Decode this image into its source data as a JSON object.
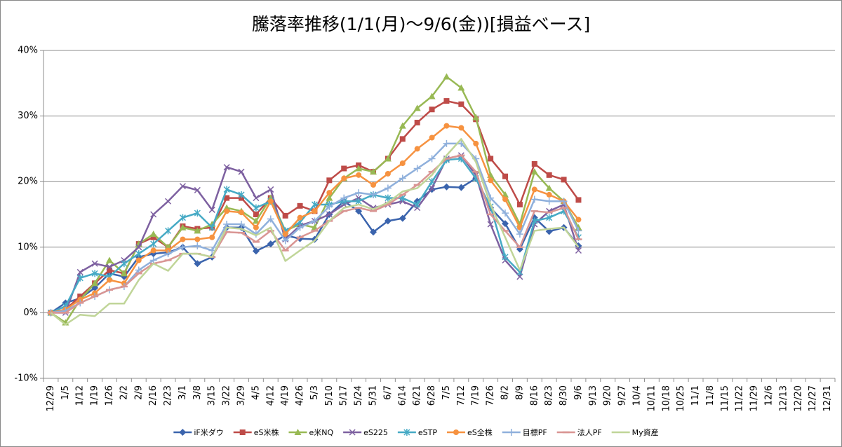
{
  "chart_data": {
    "type": "line",
    "title": "騰落率推移(1/1(月)〜9/6(金))[損益ベース]",
    "categories": [
      "12/29",
      "1/5",
      "1/12",
      "1/19",
      "1/26",
      "2/2",
      "2/9",
      "2/16",
      "2/23",
      "3/1",
      "3/8",
      "3/15",
      "3/22",
      "3/29",
      "4/5",
      "4/12",
      "4/19",
      "4/26",
      "5/3",
      "5/10",
      "5/17",
      "5/24",
      "5/31",
      "6/7",
      "6/14",
      "6/21",
      "6/28",
      "7/5",
      "7/12",
      "7/19",
      "7/26",
      "8/2",
      "8/9",
      "8/16",
      "8/23",
      "8/30",
      "9/6",
      "9/13",
      "9/20",
      "9/27",
      "10/4",
      "10/11",
      "10/18",
      "10/25",
      "11/1",
      "11/8",
      "11/15",
      "11/22",
      "11/29",
      "12/6",
      "12/13",
      "12/20",
      "12/27",
      "12/31"
    ],
    "ylim": [
      -10,
      40
    ],
    "yticks": [
      {
        "value": -10,
        "label": "-10%"
      },
      {
        "value": 0,
        "label": "0%"
      },
      {
        "value": 10,
        "label": "10%"
      },
      {
        "value": 20,
        "label": "20%"
      },
      {
        "value": 30,
        "label": "30%"
      },
      {
        "value": 40,
        "label": "40%"
      }
    ],
    "grid": true,
    "legend": "bottom",
    "series": [
      {
        "name": "iF米ダウ",
        "color": "#3b64ad",
        "marker": "diamond",
        "values": [
          0,
          1.5,
          2.2,
          3.8,
          6,
          5.5,
          8.5,
          9,
          9.2,
          10,
          7.5,
          8.5,
          13,
          13,
          9.4,
          10.5,
          11.8,
          11.3,
          11.2,
          15,
          17,
          15.5,
          12.3,
          14,
          14.4,
          17,
          18.8,
          19.2,
          19.1,
          20.5,
          16,
          13.6,
          9.7,
          14.5,
          12.4,
          13,
          10.2,
          null,
          null,
          null,
          null,
          null,
          null,
          null,
          null,
          null,
          null,
          null,
          null,
          null,
          null,
          null,
          null,
          null
        ]
      },
      {
        "name": "eS米株",
        "color": "#be4b48",
        "marker": "square",
        "values": [
          0,
          0.5,
          2.5,
          4.5,
          6.5,
          6,
          10.5,
          11.5,
          10,
          13.2,
          12.8,
          13,
          17.5,
          17.5,
          15,
          17.5,
          14.8,
          16.3,
          15.5,
          20.2,
          22,
          22.5,
          21.5,
          23.5,
          26.5,
          29,
          31,
          32.3,
          31.8,
          29.5,
          23.5,
          20.8,
          16.5,
          22.7,
          21,
          20.3,
          17.2,
          null,
          null,
          null,
          null,
          null,
          null,
          null,
          null,
          null,
          null,
          null,
          null,
          null,
          null,
          null,
          null,
          null
        ]
      },
      {
        "name": "e米NQ",
        "color": "#98b954",
        "marker": "triangle",
        "values": [
          0,
          -1.5,
          2,
          4.5,
          8,
          6,
          10.5,
          12,
          10,
          13,
          12.5,
          13.5,
          16,
          15.5,
          14,
          17.5,
          12.5,
          13.5,
          13,
          17.5,
          20.5,
          22,
          21.5,
          23.5,
          28.5,
          31.2,
          33,
          36,
          34.3,
          29.8,
          21,
          18,
          13.5,
          21.5,
          19,
          17,
          13,
          null,
          null,
          null,
          null,
          null,
          null,
          null,
          null,
          null,
          null,
          null,
          null,
          null,
          null,
          null,
          null,
          null
        ]
      },
      {
        "name": "eS225",
        "color": "#7d60a0",
        "marker": "x",
        "values": [
          0,
          0,
          6.2,
          7.5,
          7,
          8,
          10,
          15,
          17,
          19.3,
          18.7,
          15.7,
          22.2,
          21.5,
          17.5,
          18.8,
          11.2,
          13.3,
          14,
          15,
          16.5,
          17.5,
          16,
          16.5,
          17,
          16,
          19,
          23.5,
          24,
          21,
          13.5,
          8,
          5.5,
          13.5,
          15.5,
          16.5,
          9.5,
          null,
          null,
          null,
          null,
          null,
          null,
          null,
          null,
          null,
          null,
          null,
          null,
          null,
          null,
          null,
          null,
          null
        ]
      },
      {
        "name": "eSTP",
        "color": "#46aac5",
        "marker": "star",
        "values": [
          0,
          1,
          5.3,
          6,
          5.5,
          7.5,
          9,
          10.5,
          12.5,
          14.5,
          15.2,
          13,
          18.8,
          18,
          16,
          17,
          12.5,
          13.8,
          16.5,
          16.5,
          17,
          17,
          18,
          17.5,
          17.5,
          16.5,
          20,
          23.3,
          23.5,
          20.5,
          16.2,
          8.5,
          6.2,
          14,
          14.5,
          15.5,
          11.5,
          null,
          null,
          null,
          null,
          null,
          null,
          null,
          null,
          null,
          null,
          null,
          null,
          null,
          null,
          null,
          null,
          null
        ]
      },
      {
        "name": "eS全株",
        "color": "#f69240",
        "marker": "circle",
        "values": [
          0,
          0.5,
          2,
          3,
          5,
          4.5,
          8,
          9.5,
          9.5,
          11.2,
          11.2,
          11.5,
          15.5,
          15.3,
          13,
          17,
          12,
          14.5,
          15.5,
          18.3,
          20.5,
          21,
          19.5,
          21.2,
          22.8,
          25,
          26.7,
          28.5,
          28.2,
          25.8,
          20.2,
          17.3,
          13,
          18.8,
          18,
          17,
          14.2,
          null,
          null,
          null,
          null,
          null,
          null,
          null,
          null,
          null,
          null,
          null,
          null,
          null,
          null,
          null,
          null,
          null
        ]
      },
      {
        "name": "目標PF",
        "color": "#8fb0dc",
        "marker": "plus",
        "values": [
          0,
          0.3,
          1.5,
          2.5,
          3.5,
          4,
          6.5,
          8,
          9,
          10,
          10.2,
          9.5,
          13.5,
          13.5,
          12,
          14.3,
          11,
          13,
          14,
          16.2,
          17.5,
          18.3,
          18,
          19,
          20.5,
          22,
          23.5,
          25.8,
          25.8,
          23.5,
          17.5,
          15.2,
          12,
          17.3,
          17,
          17,
          12.5,
          null,
          null,
          null,
          null,
          null,
          null,
          null,
          null,
          null,
          null,
          null,
          null,
          null,
          null,
          null,
          null,
          null
        ]
      },
      {
        "name": "法人PF",
        "color": "#d99593",
        "marker": "dash",
        "values": [
          0,
          0,
          1.5,
          2.5,
          3.5,
          4,
          6,
          7.5,
          8,
          9,
          9,
          8.5,
          12.3,
          12.2,
          10.8,
          12.5,
          9.5,
          11.5,
          12.5,
          14,
          15.5,
          16,
          15.5,
          16.5,
          18,
          19.5,
          21.5,
          23.5,
          24,
          21.5,
          15,
          12.5,
          10,
          15.5,
          15.3,
          16,
          11.2,
          null,
          null,
          null,
          null,
          null,
          null,
          null,
          null,
          null,
          null,
          null,
          null,
          null,
          null,
          null,
          null,
          null
        ]
      },
      {
        "name": "My資産",
        "color": "#c0d598",
        "marker": "none",
        "values": [
          0,
          -1.8,
          -0.3,
          -0.5,
          1.4,
          1.4,
          5,
          7.5,
          6.4,
          9,
          9,
          8.5,
          13,
          12.8,
          11.8,
          13,
          7.9,
          9.5,
          11,
          14,
          16,
          16.5,
          15.8,
          16.8,
          18.5,
          19,
          21,
          24,
          26.5,
          23,
          16.5,
          11.5,
          6.5,
          12.5,
          12.8,
          13,
          10,
          null,
          null,
          null,
          null,
          null,
          null,
          null,
          null,
          null,
          null,
          null,
          null,
          null,
          null,
          null,
          null,
          null
        ]
      }
    ]
  }
}
